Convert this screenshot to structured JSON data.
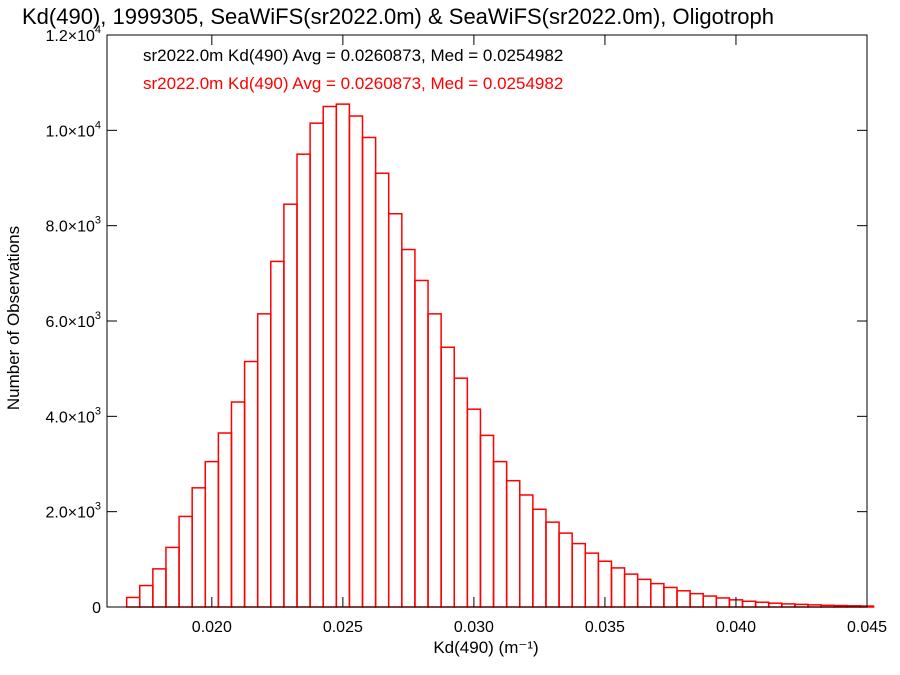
{
  "chart_data": {
    "type": "bar",
    "title": "Kd(490), 1999305, SeaWiFS(sr2022.0m) & SeaWiFS(sr2022.0m), Oligotroph",
    "xlabel": "Kd(490) (m⁻¹)",
    "ylabel": "Number of Observations",
    "xlim": [
      0.016,
      0.045
    ],
    "ylim": [
      0,
      12000
    ],
    "x_ticks": [
      {
        "value": 0.02,
        "label": "0.020"
      },
      {
        "value": 0.025,
        "label": "0.025"
      },
      {
        "value": 0.03,
        "label": "0.030"
      },
      {
        "value": 0.035,
        "label": "0.035"
      },
      {
        "value": 0.04,
        "label": "0.040"
      },
      {
        "value": 0.045,
        "label": "0.045"
      }
    ],
    "y_ticks": [
      {
        "value": 0,
        "mant": "0",
        "exp": ""
      },
      {
        "value": 2000,
        "mant": "2.0×10",
        "exp": "3"
      },
      {
        "value": 4000,
        "mant": "4.0×10",
        "exp": "3"
      },
      {
        "value": 6000,
        "mant": "6.0×10",
        "exp": "3"
      },
      {
        "value": 8000,
        "mant": "8.0×10",
        "exp": "3"
      },
      {
        "value": 10000,
        "mant": "1.0×10",
        "exp": "4"
      },
      {
        "value": 12000,
        "mant": "1.2×10",
        "exp": "4"
      }
    ],
    "annotations": [
      {
        "text": "sr2022.0m Kd(490) Avg = 0.0260873, Med = 0.0254982",
        "color": "#000000"
      },
      {
        "text": "sr2022.0m Kd(490) Avg = 0.0260873, Med = 0.0254982",
        "color": "#ff0000"
      }
    ],
    "grid": false,
    "bin_width": 0.0001,
    "series": [
      {
        "color": "#ff0000",
        "x": [
          0.017,
          0.0175,
          0.018,
          0.0185,
          0.019,
          0.0195,
          0.02,
          0.0205,
          0.021,
          0.0215,
          0.022,
          0.0225,
          0.023,
          0.0235,
          0.024,
          0.0245,
          0.025,
          0.0255,
          0.026,
          0.0265,
          0.027,
          0.0275,
          0.028,
          0.0285,
          0.029,
          0.0295,
          0.03,
          0.0305,
          0.031,
          0.0315,
          0.032,
          0.0325,
          0.033,
          0.0335,
          0.034,
          0.0345,
          0.035,
          0.0355,
          0.036,
          0.0365,
          0.037,
          0.0375,
          0.038,
          0.0385,
          0.039,
          0.0395,
          0.04,
          0.0405,
          0.041,
          0.0415,
          0.042,
          0.0425,
          0.043,
          0.0435,
          0.044,
          0.0445,
          0.045
        ],
        "values": [
          200,
          450,
          800,
          1250,
          1900,
          2500,
          3050,
          3650,
          4300,
          5150,
          6150,
          7250,
          8450,
          9500,
          10150,
          10500,
          10550,
          10300,
          9850,
          9100,
          8250,
          7500,
          6850,
          6150,
          5450,
          4800,
          4150,
          3600,
          3050,
          2650,
          2350,
          2050,
          1780,
          1550,
          1330,
          1130,
          960,
          820,
          690,
          580,
          490,
          410,
          340,
          280,
          230,
          190,
          150,
          120,
          100,
          80,
          65,
          55,
          45,
          35,
          30,
          25,
          20
        ]
      }
    ]
  }
}
